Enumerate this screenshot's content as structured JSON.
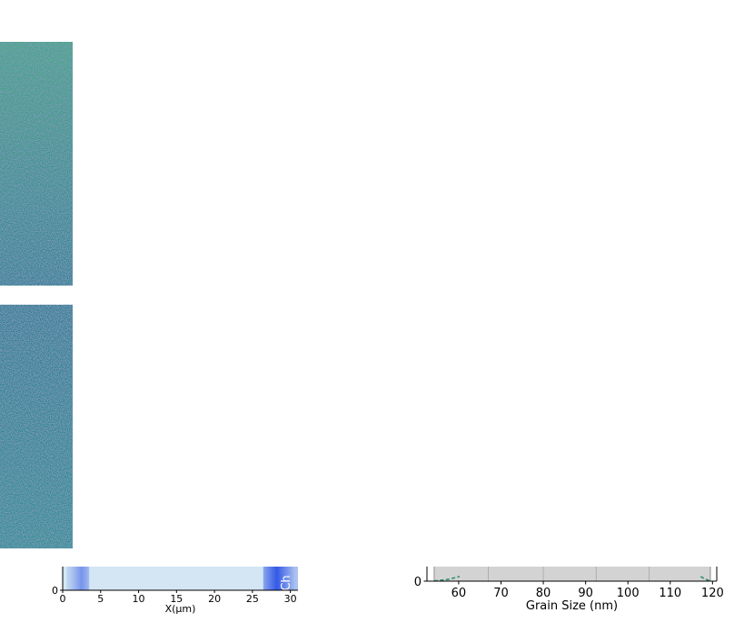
{
  "chart_data": [
    {
      "type": "heatmap",
      "panel": "upper-left-map",
      "colormap": "viridis",
      "title": "",
      "xlabel": "",
      "ylabel": "",
      "colors": {
        "high": "#5cc863",
        "mid": "#21918c",
        "low": "#3b528b",
        "min": "#440154"
      },
      "vertical_gradient": {
        "top_level": 0.72,
        "bottom_level": 0.38
      }
    },
    {
      "type": "heatmap",
      "panel": "lower-left-map",
      "colormap": "viridis",
      "title": "",
      "xlabel": "",
      "ylabel": "",
      "colors": {
        "high": "#5cc863",
        "mid": "#21918c",
        "low": "#3b528b",
        "min": "#440154"
      },
      "vertical_gradient": {
        "top_level": 0.36,
        "bottom_level": 0.5
      }
    },
    {
      "type": "heatmap",
      "panel": "x-profile-strip",
      "title": "",
      "xlabel": "X(µm)",
      "ylabel": "",
      "xlim": [
        0,
        31
      ],
      "x_ticks": [
        0,
        5,
        10,
        15,
        20,
        25,
        30
      ],
      "x_tick_labels": [
        "0",
        "5",
        "10",
        "15",
        "20",
        "25",
        "30"
      ],
      "y_ticks": [
        0
      ],
      "y_tick_labels": [
        "0"
      ],
      "annotation": "Ch",
      "colors": {
        "base": "#d4e6f3",
        "peak": "#2b52e6"
      },
      "bands": [
        {
          "x0": 0.6,
          "x1": 3.5,
          "center": 2.5,
          "intensity": 0.55
        },
        {
          "x0": 26.4,
          "x1": 31.0,
          "center": 28.2,
          "intensity": 0.95
        }
      ]
    },
    {
      "type": "line",
      "panel": "grain-size-distribution",
      "title": "",
      "xlabel": "Grain Size (nm)",
      "ylabel": "",
      "xlim": [
        52.5,
        121
      ],
      "x_ticks": [
        60,
        70,
        80,
        90,
        100,
        110,
        120
      ],
      "x_tick_labels": [
        "60",
        "70",
        "80",
        "90",
        "100",
        "110",
        "120"
      ],
      "y_ticks": [
        0
      ],
      "y_tick_labels": [
        "0"
      ],
      "grid": true,
      "shaded_band": {
        "x0": 54.2,
        "x1": 119.5,
        "color": "#d3d3d3"
      },
      "gridlines_x": [
        67.0,
        80.0,
        92.5,
        105.0
      ],
      "series": [
        {
          "style": "dashed",
          "color": "#2e8b6e",
          "segments": [
            [
              [
                54.2,
                0.01
              ],
              [
                57.5,
                0.12
              ],
              [
                60.2,
                0.32
              ]
            ],
            [
              [
                117.2,
                0.32
              ],
              [
                118.2,
                0.15
              ],
              [
                119.5,
                0.01
              ]
            ]
          ]
        }
      ]
    }
  ]
}
